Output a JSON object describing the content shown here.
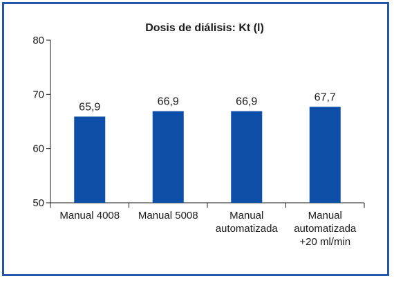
{
  "chart_data": {
    "type": "bar",
    "title": "Dosis de diálisis: Kt (l)",
    "categories": [
      [
        "Manual 4008"
      ],
      [
        "Manual 5008"
      ],
      [
        "Manual",
        "automatizada"
      ],
      [
        "Manual",
        "automatizada",
        "+20 ml/min"
      ]
    ],
    "values": [
      65.9,
      66.9,
      66.9,
      67.7
    ],
    "value_labels": [
      "65,9",
      "66,9",
      "66,9",
      "67,7"
    ],
    "ylim": [
      50,
      80
    ],
    "yticks": [
      50,
      60,
      70,
      80
    ],
    "xlabel": "",
    "ylabel": "",
    "grid": false,
    "colors": {
      "bar": "#0f4ea6",
      "frame": "#2457a8",
      "axis": "#1a1a1a"
    }
  }
}
